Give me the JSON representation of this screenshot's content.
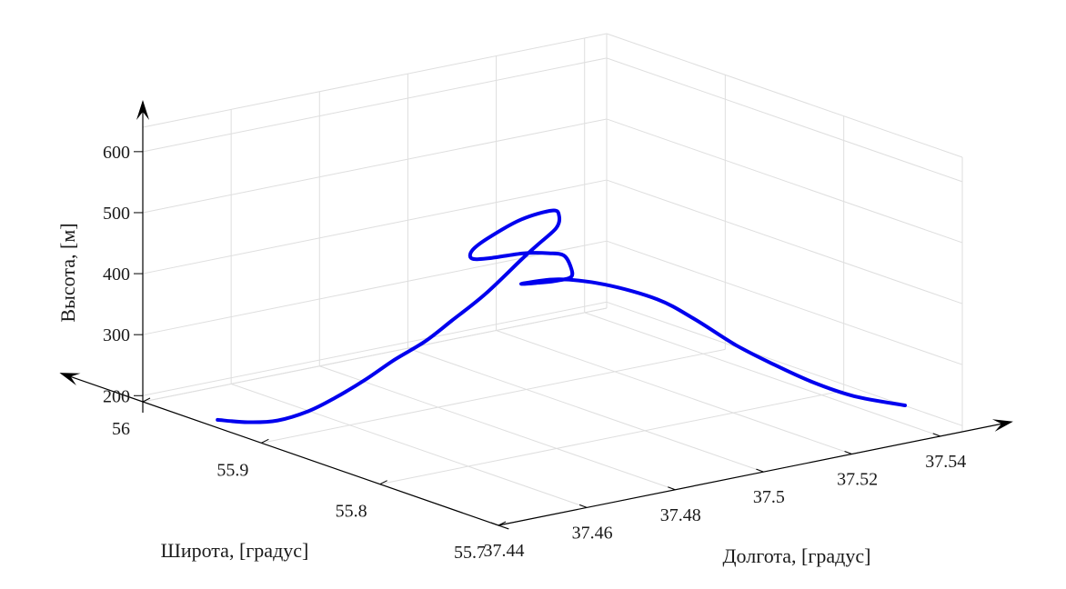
{
  "chart_data": {
    "type": "line",
    "projection": "3d",
    "title": "",
    "xlabel": "Долгота, [градус]",
    "ylabel": "Широта, [градус]",
    "zlabel": "Высота, [м]",
    "xlim": [
      37.44,
      37.545
    ],
    "ylim": [
      55.7,
      56.0
    ],
    "zlim": [
      190,
      640
    ],
    "xticks": [
      {
        "value": 37.44,
        "label": "37.44"
      },
      {
        "value": 37.46,
        "label": "37.46"
      },
      {
        "value": 37.48,
        "label": "37.48"
      },
      {
        "value": 37.5,
        "label": "37.5"
      },
      {
        "value": 37.52,
        "label": "37.52"
      },
      {
        "value": 37.54,
        "label": "37.54"
      }
    ],
    "yticks": [
      {
        "value": 55.7,
        "label": "55.7"
      },
      {
        "value": 55.8,
        "label": "55.8"
      },
      {
        "value": 55.9,
        "label": "55.9"
      },
      {
        "value": 56.0,
        "label": "56"
      }
    ],
    "zticks": [
      {
        "value": 200,
        "label": "200"
      },
      {
        "value": 300,
        "label": "300"
      },
      {
        "value": 400,
        "label": "400"
      },
      {
        "value": 500,
        "label": "500"
      },
      {
        "value": 600,
        "label": "600"
      }
    ],
    "grid": true,
    "line_color": "#0000ee",
    "series": [
      {
        "x": [
          37.4435,
          37.4466,
          37.4496,
          37.4522,
          37.4545,
          37.4571,
          37.4594,
          37.4617,
          37.464,
          37.4668,
          37.4699,
          37.4719,
          37.474,
          37.4744,
          37.4734,
          37.4682,
          37.4623,
          37.4593,
          37.4592,
          37.462,
          37.4684,
          37.4729,
          37.4756,
          37.477,
          37.4774,
          37.4757,
          37.4737,
          37.4714,
          37.4716,
          37.478,
          37.4861,
          37.4953,
          37.5018,
          37.5088,
          37.5153,
          37.5219,
          37.5286,
          37.5366
        ],
        "y": [
          55.95,
          55.936,
          55.922,
          55.906,
          55.892,
          55.876,
          55.86,
          55.843,
          55.829,
          55.811,
          55.792,
          55.786,
          55.778,
          55.777,
          55.779,
          55.786,
          55.792,
          55.794,
          55.794,
          55.791,
          55.785,
          55.78,
          55.7775,
          55.777,
          55.778,
          55.784,
          55.79,
          55.796,
          55.795,
          55.79,
          55.782,
          55.772,
          55.765,
          55.756,
          55.748,
          55.74,
          55.73,
          55.717
        ],
        "z": [
          189,
          190,
          198,
          220,
          248,
          285,
          325,
          363,
          403,
          455,
          520,
          545,
          575,
          595,
          604,
          592,
          566,
          549,
          536,
          534,
          537,
          534,
          528,
          508,
          490,
          482,
          478,
          475,
          477,
          477,
          462,
          431,
          394,
          347,
          311,
          278,
          252,
          234
        ]
      }
    ]
  }
}
